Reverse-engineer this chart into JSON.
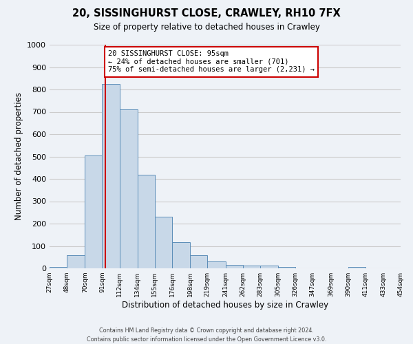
{
  "title": "20, SISSINGHURST CLOSE, CRAWLEY, RH10 7FX",
  "subtitle": "Size of property relative to detached houses in Crawley",
  "xlabel": "Distribution of detached houses by size in Crawley",
  "ylabel": "Number of detached properties",
  "bin_edges": [
    27,
    48,
    70,
    91,
    112,
    134,
    155,
    176,
    198,
    219,
    241,
    262,
    283,
    305,
    326,
    347,
    369,
    390,
    411,
    433,
    454
  ],
  "bin_labels": [
    "27sqm",
    "48sqm",
    "70sqm",
    "91sqm",
    "112sqm",
    "134sqm",
    "155sqm",
    "176sqm",
    "198sqm",
    "219sqm",
    "241sqm",
    "262sqm",
    "283sqm",
    "305sqm",
    "326sqm",
    "347sqm",
    "369sqm",
    "390sqm",
    "411sqm",
    "433sqm",
    "454sqm"
  ],
  "bar_heights": [
    5,
    60,
    505,
    825,
    710,
    418,
    230,
    118,
    57,
    32,
    15,
    12,
    12,
    7,
    0,
    0,
    0,
    7,
    0,
    0
  ],
  "bar_color": "#c8d8e8",
  "bar_edge_color": "#5b8db8",
  "property_size": 95,
  "vline_color": "#cc0000",
  "annotation_text": "20 SISSINGHURST CLOSE: 95sqm\n← 24% of detached houses are smaller (701)\n75% of semi-detached houses are larger (2,231) →",
  "annotation_box_color": "#ffffff",
  "annotation_box_edge": "#cc0000",
  "ylim": [
    0,
    1000
  ],
  "yticks": [
    0,
    100,
    200,
    300,
    400,
    500,
    600,
    700,
    800,
    900,
    1000
  ],
  "grid_color": "#cccccc",
  "background_color": "#eef2f7",
  "footer1": "Contains HM Land Registry data © Crown copyright and database right 2024.",
  "footer2": "Contains public sector information licensed under the Open Government Licence v3.0."
}
